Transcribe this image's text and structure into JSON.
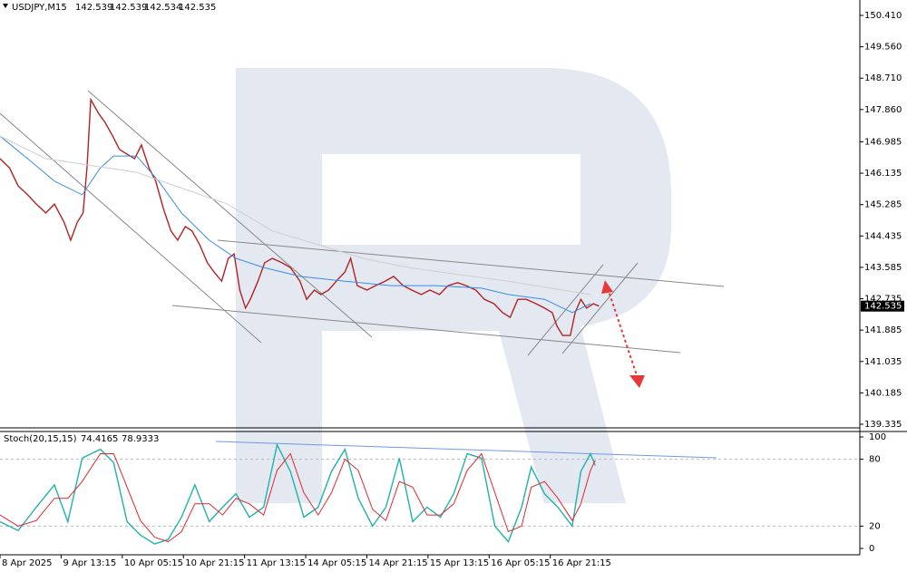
{
  "chart_data": [
    {
      "type": "line",
      "title": "USDJPY,M15",
      "ohlc": [
        142.539,
        142.539,
        142.534,
        142.535
      ],
      "last_price": 142.535,
      "xlim": [
        0,
        900
      ],
      "ylim": [
        139.237,
        150.827
      ],
      "yticks": [
        {
          "value": 150.41,
          "label": "150.410"
        },
        {
          "value": 149.56,
          "label": "149.560"
        },
        {
          "value": 148.71,
          "label": "148.710"
        },
        {
          "value": 147.86,
          "label": "147.860"
        },
        146.985,
        146.135,
        145.285,
        144.435,
        143.585,
        142.735,
        141.885,
        141.035,
        140.185,
        139.335
      ],
      "series": [
        {
          "name": "USDJPY",
          "color": "#b22222",
          "x": [
            0,
            10,
            19,
            29,
            38,
            48,
            57,
            67,
            74,
            81,
            87,
            91,
            95,
            103,
            110,
            118,
            125,
            133,
            141,
            148,
            156,
            163,
            171,
            179,
            186,
            194,
            201,
            209,
            217,
            224,
            232,
            239,
            245,
            251,
            257,
            262,
            270,
            277,
            285,
            295,
            304,
            314,
            321,
            329,
            336,
            344,
            352,
            361,
            367,
            374,
            384,
            393,
            403,
            412,
            422,
            431,
            441,
            450,
            460,
            469,
            479,
            488,
            498,
            507,
            517,
            526,
            534,
            542,
            551,
            561,
            570,
            578,
            583,
            589,
            597,
            602,
            608,
            614,
            621,
            627
          ],
          "values": [
            146.53,
            146.28,
            145.79,
            145.55,
            145.3,
            145.06,
            145.3,
            144.81,
            144.32,
            144.81,
            145.06,
            146.28,
            148.13,
            147.76,
            147.51,
            147.14,
            146.78,
            146.65,
            146.53,
            146.9,
            146.28,
            145.92,
            145.18,
            144.57,
            144.32,
            144.69,
            144.57,
            144.2,
            143.71,
            143.46,
            143.21,
            143.83,
            143.95,
            142.97,
            142.48,
            142.72,
            143.21,
            143.71,
            143.83,
            143.71,
            143.58,
            143.21,
            142.72,
            142.97,
            142.85,
            142.97,
            143.21,
            143.46,
            143.83,
            143.09,
            142.97,
            143.09,
            143.21,
            143.34,
            143.09,
            142.97,
            142.85,
            142.97,
            142.85,
            143.09,
            143.17,
            143.09,
            142.97,
            142.72,
            142.6,
            142.36,
            142.23,
            142.72,
            142.72,
            142.6,
            142.48,
            142.36,
            141.99,
            141.74,
            141.74,
            142.36,
            142.72,
            142.48,
            142.6,
            142.535
          ]
        },
        {
          "color": "#3a8ee6",
          "x": [
            0,
            29,
            57,
            86,
            105,
            119,
            143,
            166,
            190,
            219,
            247,
            276,
            314,
            361,
            409,
            456,
            504,
            532,
            570,
            599,
            618
          ],
          "values": [
            147.14,
            146.53,
            145.92,
            145.55,
            146.28,
            146.6,
            146.6,
            145.92,
            145.06,
            144.32,
            143.83,
            143.58,
            143.34,
            143.21,
            143.09,
            143.09,
            143.02,
            142.85,
            142.72,
            142.36,
            142.6
          ]
        },
        {
          "color": "#cfcfcf",
          "x": [
            0,
            48,
            143,
            238,
            285,
            333,
            380,
            428,
            475,
            532,
            589,
            618
          ],
          "values": [
            147.14,
            146.53,
            146.16,
            145.3,
            144.57,
            144.2,
            143.83,
            143.58,
            143.41,
            143.21,
            142.97,
            142.85
          ]
        }
      ]
    },
    {
      "type": "line",
      "title": "Stoch(20,15,15)",
      "readings": [
        74.4165,
        78.9333
      ],
      "xlim": [
        0,
        900
      ],
      "ylim": [
        -5.7,
        104.9
      ],
      "yticks": [
        0,
        20,
        80,
        100
      ],
      "levels": [
        20,
        80
      ],
      "xticks": [
        {
          "value": 0,
          "label": "8 Apr 2025"
        },
        {
          "value": 64,
          "label": "9 Apr 13:15"
        },
        {
          "value": 128,
          "label": "10 Apr 05:15"
        },
        {
          "value": 192,
          "label": "10 Apr 21:15"
        },
        {
          "value": 256,
          "label": "11 Apr 13:15"
        },
        {
          "value": 320,
          "label": "14 Apr 05:15"
        },
        {
          "value": 384,
          "label": "14 Apr 21:15"
        },
        {
          "value": 448,
          "label": "15 Apr 13:15"
        },
        {
          "value": 512,
          "label": "16 Apr 05:15"
        },
        {
          "value": 576,
          "label": "16 Apr 21:15"
        }
      ],
      "series": [
        {
          "color": "#20b2aa",
          "x": [
            0,
            19,
            38,
            57,
            71,
            86,
            105,
            119,
            133,
            147,
            162,
            176,
            190,
            204,
            219,
            233,
            247,
            261,
            276,
            290,
            304,
            318,
            333,
            347,
            361,
            375,
            390,
            404,
            418,
            432,
            447,
            461,
            475,
            489,
            504,
            518,
            532,
            546,
            556,
            570,
            584,
            599,
            608,
            618,
            623
          ],
          "values": [
            24,
            16,
            37,
            57,
            24,
            81,
            89,
            77,
            24,
            12,
            4,
            8,
            28,
            57,
            24,
            37,
            49,
            28,
            37,
            93,
            69,
            28,
            37,
            69,
            89,
            45,
            20,
            37,
            81,
            24,
            37,
            28,
            49,
            85,
            81,
            20,
            6,
            37,
            73,
            49,
            37,
            20,
            69,
            85,
            74.4165
          ]
        },
        {
          "color": "#e0282e",
          "x": [
            0,
            19,
            38,
            57,
            71,
            86,
            105,
            119,
            133,
            147,
            162,
            176,
            190,
            204,
            219,
            233,
            247,
            261,
            276,
            290,
            304,
            318,
            333,
            347,
            361,
            375,
            390,
            404,
            418,
            432,
            447,
            461,
            475,
            489,
            504,
            518,
            532,
            546,
            556,
            570,
            584,
            599,
            608,
            618,
            623
          ],
          "values": [
            30,
            20,
            25,
            45,
            45,
            60,
            85,
            85,
            55,
            25,
            10,
            6,
            15,
            40,
            40,
            30,
            45,
            40,
            30,
            70,
            85,
            50,
            30,
            50,
            80,
            70,
            35,
            25,
            60,
            55,
            30,
            30,
            40,
            70,
            85,
            50,
            15,
            20,
            55,
            60,
            45,
            25,
            40,
            70,
            78.9333
          ]
        }
      ]
    }
  ]
}
